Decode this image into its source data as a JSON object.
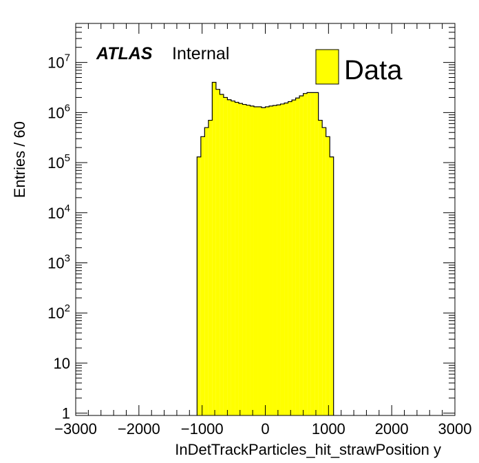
{
  "chart_data": {
    "type": "histogram",
    "experiment": "ATLAS",
    "status": "Internal",
    "xlabel": "InDetTrackParticles_hit_strawPosition y",
    "ylabel": "Entries / 60",
    "xlim": [
      -3000,
      3000
    ],
    "ylim": [
      0.9,
      60000000
    ],
    "log_y": true,
    "x_ticks": [
      -3000,
      -2000,
      -1000,
      0,
      1000,
      2000,
      3000
    ],
    "x_tick_labels": [
      "−3000",
      "−2000",
      "−1000",
      "0",
      "1000",
      "2000",
      "3000"
    ],
    "y_ticks": [
      {
        "value": 1,
        "base": "1",
        "exp": ""
      },
      {
        "value": 10,
        "base": "10",
        "exp": ""
      },
      {
        "value": 100,
        "base": "10",
        "exp": "2"
      },
      {
        "value": 1000,
        "base": "10",
        "exp": "3"
      },
      {
        "value": 10000,
        "base": "10",
        "exp": "4"
      },
      {
        "value": 100000,
        "base": "10",
        "exp": "5"
      },
      {
        "value": 1000000,
        "base": "10",
        "exp": "6"
      },
      {
        "value": 10000000,
        "base": "10",
        "exp": "7"
      }
    ],
    "bin_width": 60,
    "fill_color": "#ffff00",
    "line_color": "#000000",
    "legend": {
      "position": "top-right",
      "entries": [
        {
          "label": "Data",
          "color": "#ffff00"
        }
      ]
    },
    "series": [
      {
        "name": "Data",
        "bins": [
          {
            "x": -1080,
            "y": 130000
          },
          {
            "x": -1020,
            "y": 330000
          },
          {
            "x": -960,
            "y": 500000
          },
          {
            "x": -900,
            "y": 700000
          },
          {
            "x": -840,
            "y": 4000000
          },
          {
            "x": -780,
            "y": 2900000
          },
          {
            "x": -720,
            "y": 2300000
          },
          {
            "x": -660,
            "y": 2000000
          },
          {
            "x": -600,
            "y": 1800000
          },
          {
            "x": -540,
            "y": 1700000
          },
          {
            "x": -480,
            "y": 1600000
          },
          {
            "x": -420,
            "y": 1520000
          },
          {
            "x": -360,
            "y": 1450000
          },
          {
            "x": -300,
            "y": 1400000
          },
          {
            "x": -240,
            "y": 1350000
          },
          {
            "x": -180,
            "y": 1300000
          },
          {
            "x": -120,
            "y": 1300000
          },
          {
            "x": -60,
            "y": 1250000
          },
          {
            "x": 0,
            "y": 1300000
          },
          {
            "x": 60,
            "y": 1350000
          },
          {
            "x": 120,
            "y": 1380000
          },
          {
            "x": 180,
            "y": 1420000
          },
          {
            "x": 240,
            "y": 1480000
          },
          {
            "x": 300,
            "y": 1550000
          },
          {
            "x": 360,
            "y": 1650000
          },
          {
            "x": 420,
            "y": 1780000
          },
          {
            "x": 480,
            "y": 1950000
          },
          {
            "x": 540,
            "y": 2150000
          },
          {
            "x": 600,
            "y": 2400000
          },
          {
            "x": 660,
            "y": 2500000
          },
          {
            "x": 720,
            "y": 2500000
          },
          {
            "x": 780,
            "y": 2500000
          },
          {
            "x": 840,
            "y": 700000
          },
          {
            "x": 900,
            "y": 500000
          },
          {
            "x": 960,
            "y": 330000
          },
          {
            "x": 1020,
            "y": 130000
          }
        ]
      }
    ]
  }
}
